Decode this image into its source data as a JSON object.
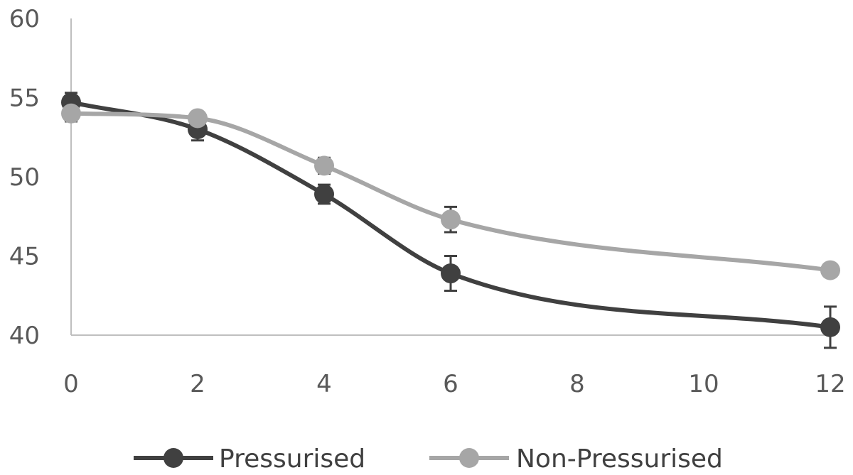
{
  "chart_data": {
    "type": "line",
    "title": "",
    "xlabel": "",
    "ylabel": "",
    "x": [
      0,
      2,
      4,
      6,
      12
    ],
    "xlim": [
      0,
      12
    ],
    "ylim": [
      40,
      60
    ],
    "x_ticks": [
      "0",
      "2",
      "4",
      "6",
      "8",
      "10",
      "12"
    ],
    "y_ticks": [
      "40",
      "45",
      "50",
      "55",
      "60"
    ],
    "smooth": true,
    "grid": false,
    "legend_position": "bottom",
    "series": [
      {
        "name": "Pressurised",
        "color": "#404040",
        "values": [
          54.7,
          53.0,
          48.9,
          43.9,
          40.5
        ],
        "error": [
          0.6,
          0.7,
          0.6,
          1.1,
          1.3
        ]
      },
      {
        "name": "Non-Pressurised",
        "color": "#a6a6a6",
        "values": [
          54.0,
          53.7,
          50.7,
          47.3,
          44.1
        ],
        "error": [
          0.5,
          0.4,
          0.5,
          0.8,
          0.0
        ]
      }
    ]
  }
}
